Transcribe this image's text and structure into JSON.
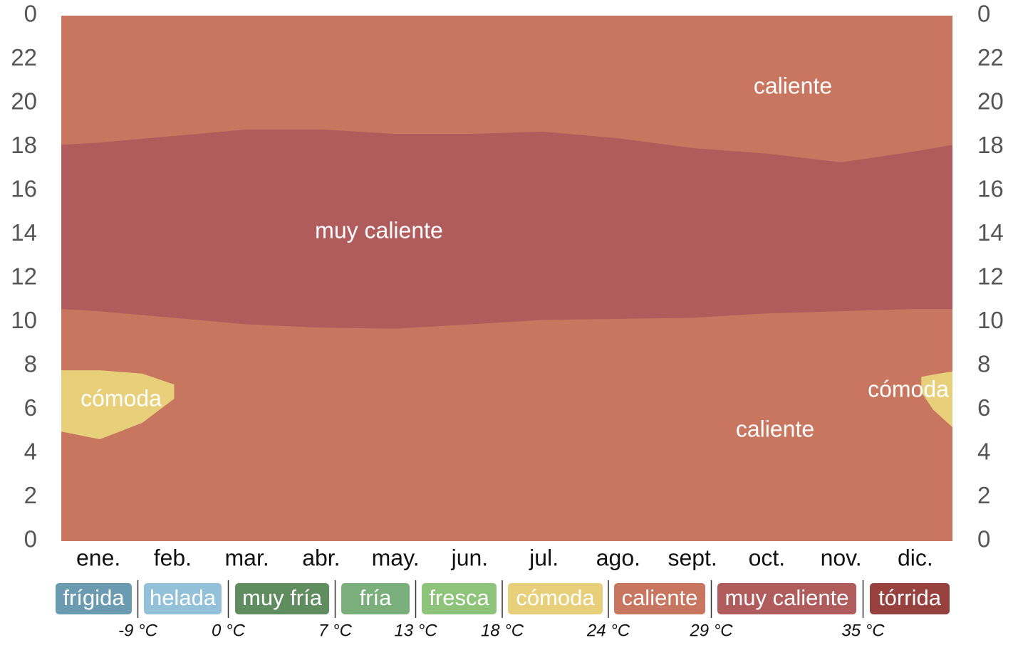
{
  "chart_data": {
    "type": "band",
    "categories": [
      "ene.",
      "feb.",
      "mar.",
      "abr.",
      "may.",
      "jun.",
      "jul.",
      "ago.",
      "sept.",
      "oct.",
      "nov.",
      "dic."
    ],
    "xlim": [
      0,
      12
    ],
    "ylim": [
      0,
      24
    ],
    "yticks": [
      {
        "value": 24,
        "label": "0"
      },
      22,
      20,
      18,
      16,
      14,
      12,
      10,
      8,
      6,
      4,
      2,
      0
    ],
    "series": [
      {
        "name": "caliente",
        "color": "#c8765f",
        "x": [
          0,
          12
        ],
        "upper": [
          24,
          24
        ],
        "lower": [
          0,
          0
        ]
      },
      {
        "name": "muy caliente",
        "color": "#b15c5c",
        "x": [
          0,
          0.5,
          1.5,
          2.5,
          3.5,
          4.5,
          5.5,
          6.5,
          7.5,
          8.5,
          9.5,
          10.5,
          11.5,
          12
        ],
        "upper": [
          18.1,
          18.2,
          18.5,
          18.8,
          18.8,
          18.6,
          18.6,
          18.7,
          18.4,
          17.95,
          17.7,
          17.3,
          17.8,
          18.1
        ],
        "lower": [
          10.6,
          10.5,
          10.2,
          9.9,
          9.75,
          9.7,
          9.9,
          10.1,
          10.15,
          10.2,
          10.4,
          10.5,
          10.6,
          10.6
        ]
      },
      {
        "name": "cómoda",
        "color": "#e8cf7a",
        "x": [
          0,
          0.52,
          1.09,
          1.52
        ],
        "upper": [
          7.8,
          7.8,
          7.65,
          7.15
        ],
        "lower": [
          5.0,
          4.65,
          5.4,
          6.5
        ]
      },
      {
        "name": "cómoda",
        "color": "#e8cf7a",
        "x": [
          11.58,
          11.74,
          12
        ],
        "upper": [
          7.5,
          7.6,
          7.75
        ],
        "lower": [
          6.8,
          6.0,
          5.2
        ]
      }
    ],
    "annotations": [
      "caliente",
      "muy caliente",
      "cómoda",
      "cómoda",
      "caliente"
    ],
    "legend": {
      "items": [
        {
          "name": "frígida",
          "color": "#6b9bb0"
        },
        {
          "name": "helada",
          "color": "#93c1d9"
        },
        {
          "name": "muy fría",
          "color": "#5f8d60"
        },
        {
          "name": "fría",
          "color": "#7aae7a"
        },
        {
          "name": "fresca",
          "color": "#8ec47a"
        },
        {
          "name": "cómoda",
          "color": "#e8cf7a"
        },
        {
          "name": "caliente",
          "color": "#c8765f"
        },
        {
          "name": "muy caliente",
          "color": "#b15c5c"
        },
        {
          "name": "tórrida",
          "color": "#96413e"
        }
      ],
      "thresholds": [
        {
          "value": -9,
          "label": "-9 °C"
        },
        {
          "value": 0,
          "label": "0 °C"
        },
        {
          "value": 7,
          "label": "7 °C"
        },
        {
          "value": 13,
          "label": "13 °C"
        },
        {
          "value": 18,
          "label": "18 °C"
        },
        {
          "value": 24,
          "label": "24 °C"
        },
        {
          "value": 29,
          "label": "29 °C"
        },
        {
          "value": 35,
          "label": "35 °C"
        }
      ]
    }
  }
}
